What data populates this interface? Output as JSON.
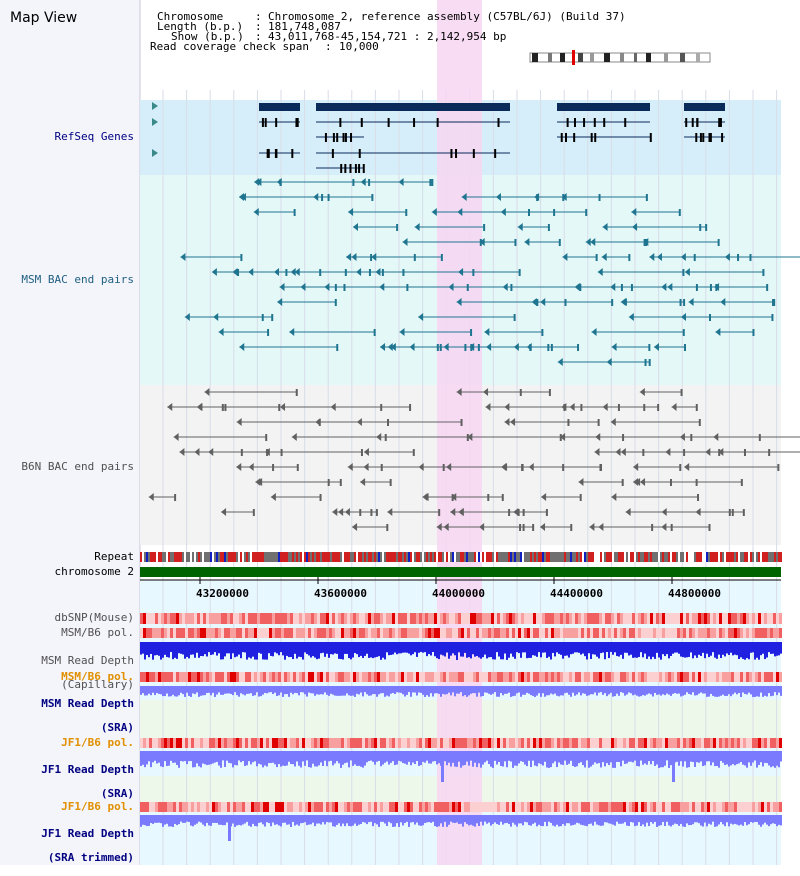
{
  "header": {
    "view_title": "Map View",
    "chromosome_key": "Chromosome",
    "chromosome_value": "Chromosome 2, reference assembly (C57BL/6J) (Build 37)",
    "length_key": "Length (b.p.)",
    "length_value": "181,748,087",
    "show_key": "Show (b.p.)",
    "show_value": "43,011,768-45,154,721 : 2,142,954 bp",
    "coverage_key": "Read coverage check span",
    "coverage_value": "10,000"
  },
  "tracks": {
    "refseq": "RefSeq Genes",
    "msm_bac": "MSM BAC end pairs",
    "b6n_bac": "B6N BAC end pairs",
    "repeat": "Repeat",
    "chromosome": "chromosome 2",
    "dbsnp": "dbSNP(Mouse)",
    "msm_b6_pol": "MSM/B6 pol.",
    "msm_depth_cap_1": "MSM Read Depth",
    "msm_depth_cap_2": "(Capillary)",
    "msm_b6_pol_2": "MSM/B6 pol.",
    "msm_depth_sra_1": "MSM Read Depth",
    "msm_depth_sra_2": "(SRA)",
    "jf1_pol": "JF1/B6 pol.",
    "jf1_depth_sra_1": "JF1 Read Depth",
    "jf1_depth_sra_2": "(SRA)",
    "jf1_pol_2": "JF1/B6 pol.",
    "jf1_depth_trim_1": "JF1 Read Depth",
    "jf1_depth_trim_2": "(SRA trimmed)"
  },
  "axis": {
    "ticks": [
      "43200000",
      "43600000",
      "44000000",
      "44400000",
      "44800000"
    ]
  },
  "colors": {
    "highlight": "#f7d6f2",
    "refseq_bg": "#d6eef9",
    "msm_bg": "#e4f8f8",
    "b6n_bg": "#f3f3f3",
    "gene": "#0a2a5a",
    "msm_pair": "#1f7590",
    "b6n_pair": "#606060",
    "chrom_bar": "#006400",
    "depth_blue": "#2020e0",
    "depth_light": "#7a7aff",
    "label_blue": "#000080",
    "label_orange": "#e09000"
  }
}
